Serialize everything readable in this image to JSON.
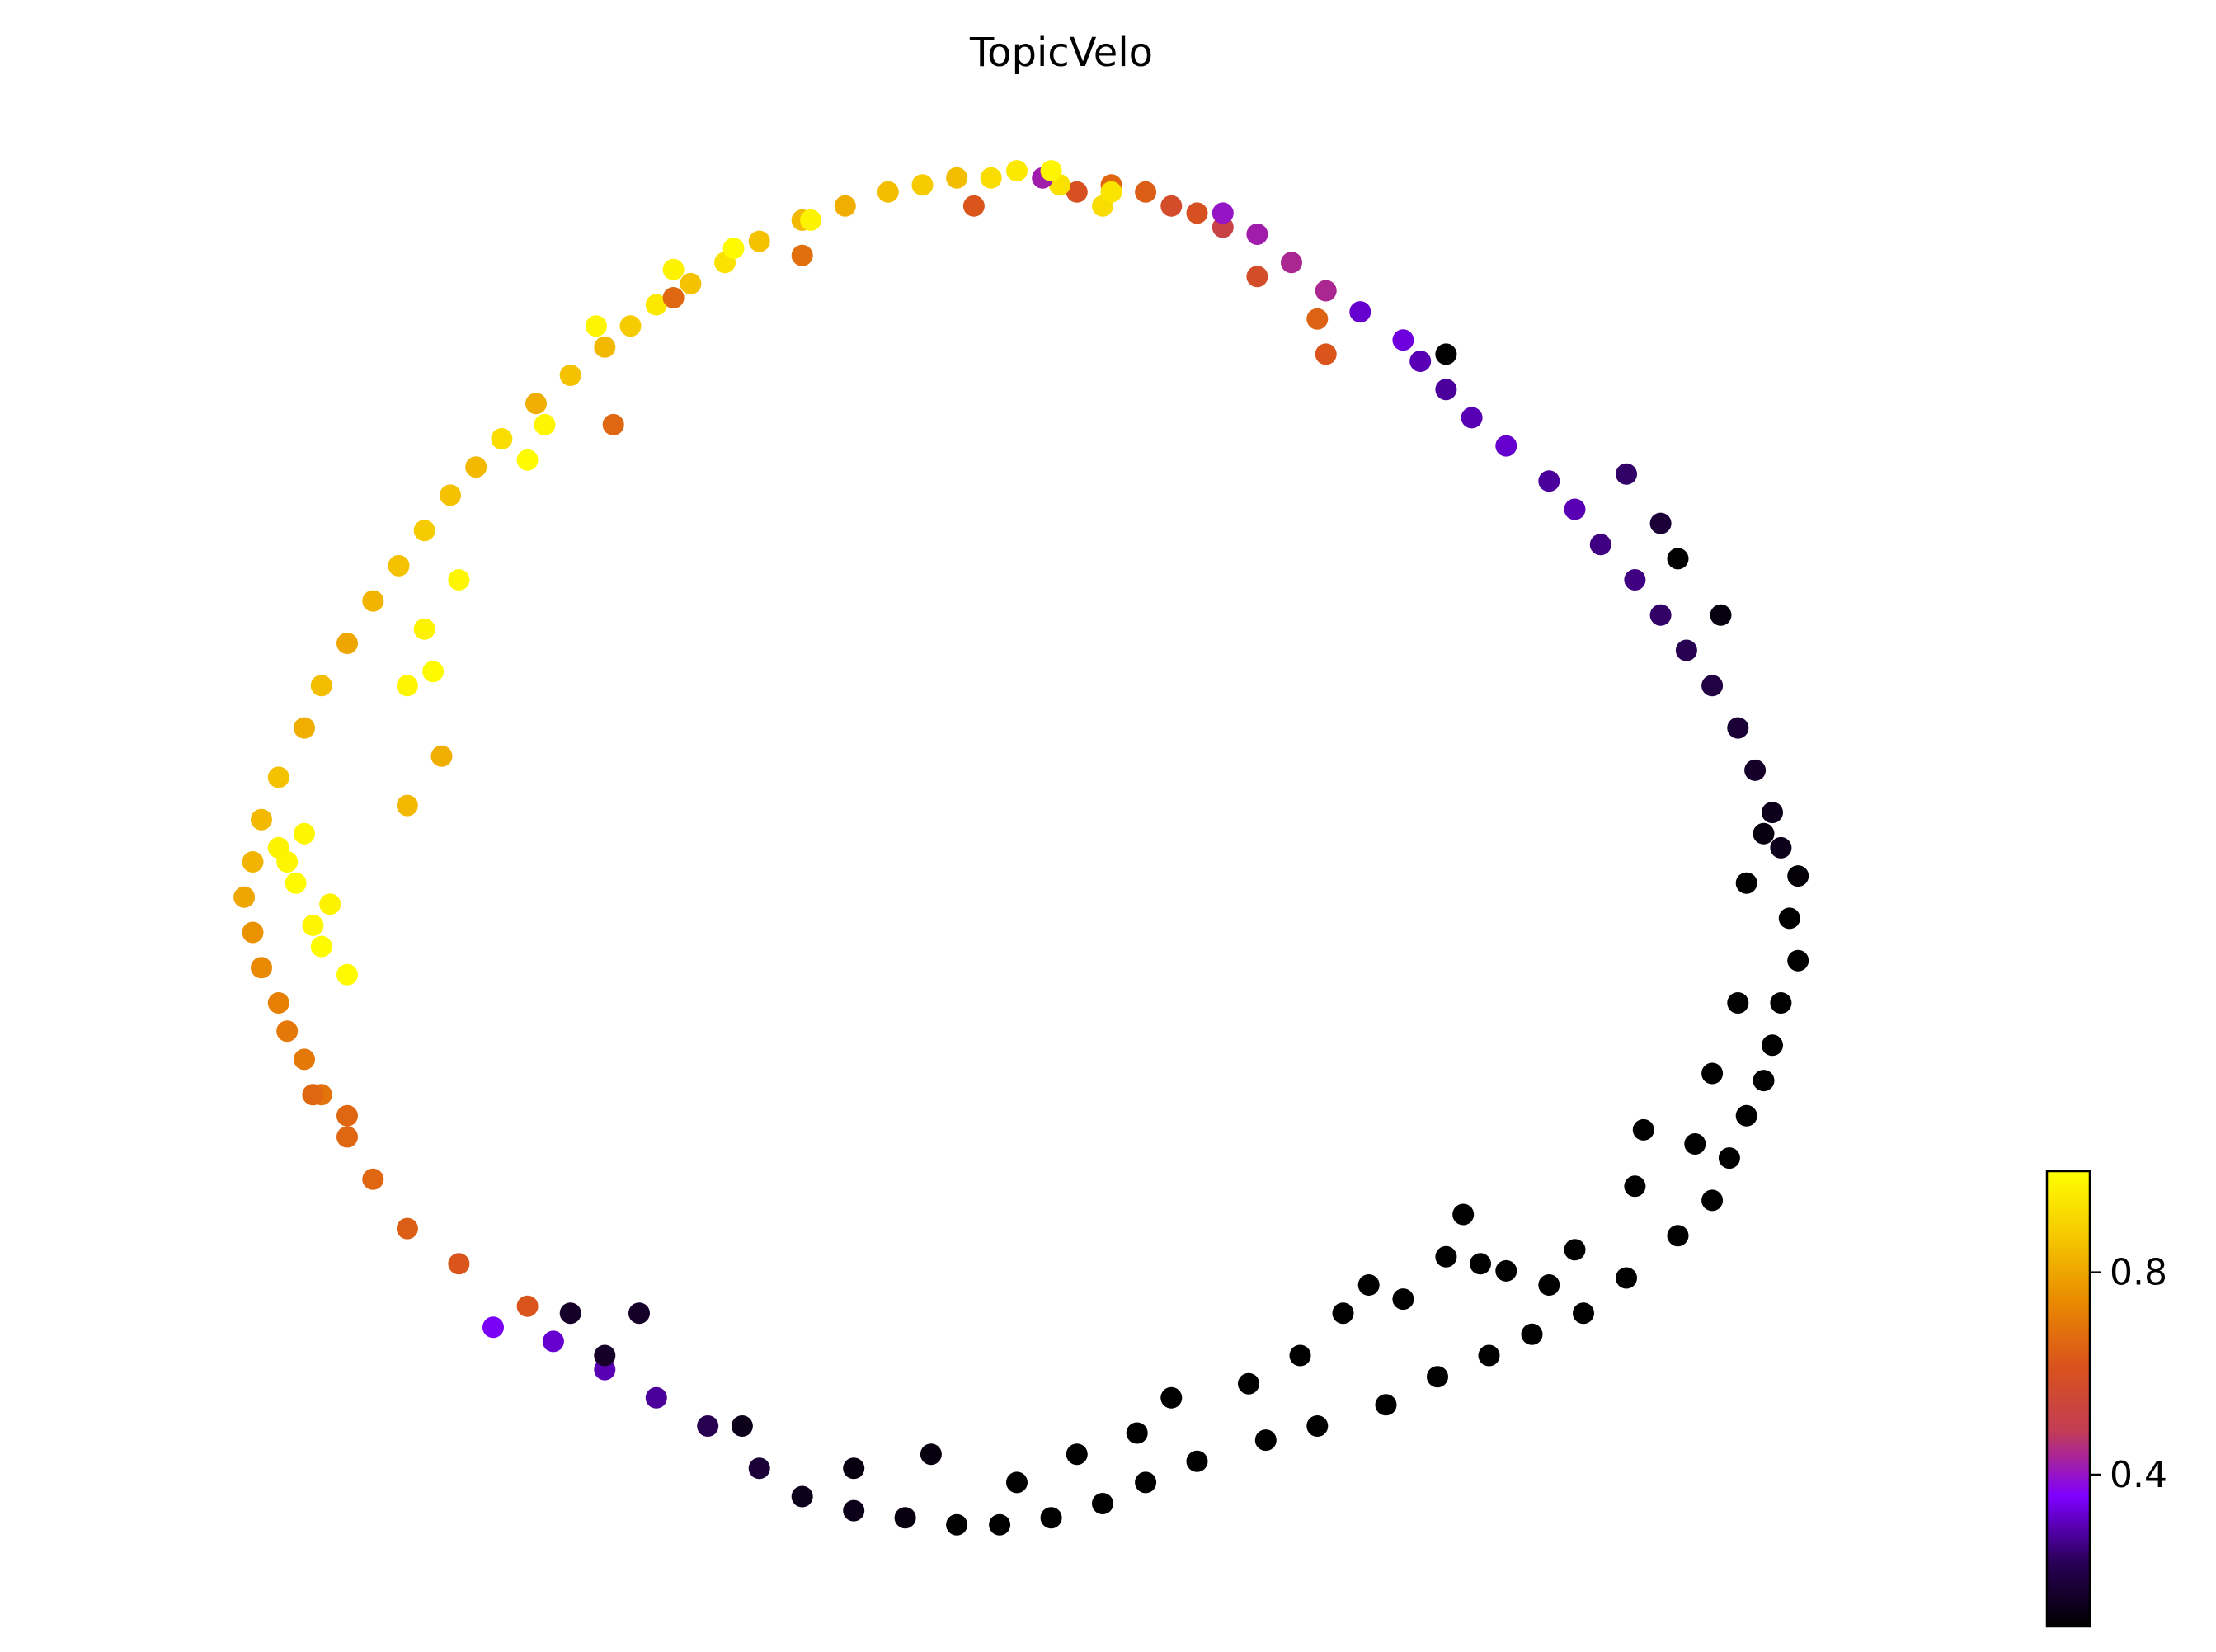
{
  "chart_data": {
    "type": "scatter",
    "title": "TopicVelo",
    "xlabel": "",
    "ylabel": "",
    "grid": false,
    "axes_visible": false,
    "colormap": "gnuplot",
    "colormap_stops": [
      "#000000",
      "#2a0058",
      "#7f00ff",
      "#c23c55",
      "#d9531c",
      "#e98a00",
      "#f5c800",
      "#ffff00"
    ],
    "color_range": [
      0.1,
      1.0
    ],
    "colorbar": {
      "placement": "bottom-right",
      "ticks": [
        {
          "value": 0.4,
          "label": "0.4"
        },
        {
          "value": 0.8,
          "label": "0.8"
        }
      ]
    },
    "point_color": "#000000",
    "x_range": [
      -1.1,
      1.1
    ],
    "y_range": [
      -1.0,
      1.0
    ],
    "points": [
      [
        -0.05,
        0.98,
        0.95
      ],
      [
        -0.08,
        0.97,
        0.92
      ],
      [
        -0.12,
        0.97,
        0.85
      ],
      [
        -0.16,
        0.96,
        0.88
      ],
      [
        -0.2,
        0.95,
        0.85
      ],
      [
        -0.25,
        0.93,
        0.82
      ],
      [
        -0.3,
        0.91,
        0.84
      ],
      [
        -0.35,
        0.88,
        0.86
      ],
      [
        -0.39,
        0.85,
        0.93
      ],
      [
        -0.43,
        0.82,
        0.86
      ],
      [
        -0.47,
        0.79,
        0.95
      ],
      [
        -0.5,
        0.76,
        0.88
      ],
      [
        -0.53,
        0.73,
        0.84
      ],
      [
        -0.57,
        0.69,
        0.86
      ],
      [
        -0.61,
        0.65,
        0.82
      ],
      [
        -0.65,
        0.6,
        0.92
      ],
      [
        -0.68,
        0.56,
        0.84
      ],
      [
        -0.71,
        0.52,
        0.86
      ],
      [
        -0.74,
        0.47,
        0.88
      ],
      [
        -0.77,
        0.42,
        0.86
      ],
      [
        -0.8,
        0.37,
        0.83
      ],
      [
        -0.83,
        0.31,
        0.8
      ],
      [
        -0.86,
        0.25,
        0.85
      ],
      [
        -0.88,
        0.19,
        0.82
      ],
      [
        -0.91,
        0.12,
        0.86
      ],
      [
        -0.93,
        0.06,
        0.84
      ],
      [
        -0.94,
        0.0,
        0.83
      ],
      [
        -0.95,
        -0.05,
        0.8
      ],
      [
        -0.94,
        -0.1,
        0.76
      ],
      [
        -0.93,
        -0.15,
        0.74
      ],
      [
        -0.91,
        -0.2,
        0.72
      ],
      [
        -0.9,
        -0.24,
        0.7
      ],
      [
        -0.88,
        -0.28,
        0.7
      ],
      [
        -0.86,
        -0.33,
        0.69
      ],
      [
        -0.83,
        -0.39,
        0.66
      ],
      [
        -0.8,
        -0.45,
        0.66
      ],
      [
        -0.76,
        -0.52,
        0.64
      ],
      [
        -0.7,
        -0.57,
        0.62
      ],
      [
        -0.62,
        -0.63,
        0.62
      ],
      [
        -0.3,
        0.86,
        0.68
      ],
      [
        -0.52,
        0.62,
        0.66
      ],
      [
        -0.45,
        0.8,
        0.66
      ],
      [
        -0.1,
        0.93,
        0.62
      ],
      [
        0.02,
        0.95,
        0.6
      ],
      [
        0.06,
        0.96,
        0.66
      ],
      [
        0.1,
        0.95,
        0.64
      ],
      [
        0.13,
        0.93,
        0.58
      ],
      [
        0.16,
        0.92,
        0.6
      ],
      [
        0.19,
        0.9,
        0.52
      ],
      [
        0.23,
        0.83,
        0.58
      ],
      [
        0.05,
        0.93,
        0.92
      ],
      [
        -0.0,
        0.96,
        0.93
      ],
      [
        -0.02,
        0.97,
        0.42
      ],
      [
        0.3,
        0.77,
        0.65
      ],
      [
        0.31,
        0.72,
        0.62
      ],
      [
        -0.72,
        0.15,
        0.82
      ],
      [
        -0.76,
        0.08,
        0.84
      ],
      [
        -0.87,
        -0.33,
        0.66
      ],
      [
        -0.83,
        -0.36,
        0.66
      ],
      [
        -0.9,
        0.0,
        0.98
      ],
      [
        -0.89,
        -0.03,
        0.99
      ],
      [
        -0.91,
        0.02,
        0.97
      ],
      [
        -0.88,
        0.04,
        0.98
      ],
      [
        -0.87,
        -0.09,
        0.98
      ],
      [
        -0.86,
        -0.12,
        0.99
      ],
      [
        -0.85,
        -0.06,
        0.97
      ],
      [
        -0.83,
        -0.16,
        0.99
      ],
      [
        -0.76,
        0.25,
        0.98
      ],
      [
        -0.73,
        0.27,
        0.99
      ],
      [
        -0.74,
        0.33,
        0.97
      ],
      [
        -0.7,
        0.4,
        0.98
      ],
      [
        -0.62,
        0.57,
        0.99
      ],
      [
        -0.6,
        0.62,
        0.98
      ],
      [
        -0.54,
        0.76,
        0.98
      ],
      [
        -0.45,
        0.84,
        0.97
      ],
      [
        -0.38,
        0.87,
        0.99
      ],
      [
        -0.29,
        0.91,
        0.97
      ],
      [
        -0.01,
        0.98,
        0.98
      ],
      [
        0.06,
        0.95,
        0.94
      ],
      [
        0.19,
        0.92,
        0.4
      ],
      [
        0.23,
        0.89,
        0.42
      ],
      [
        0.27,
        0.85,
        0.44
      ],
      [
        0.31,
        0.81,
        0.44
      ],
      [
        0.35,
        0.78,
        0.32
      ],
      [
        0.4,
        0.74,
        0.33
      ],
      [
        0.42,
        0.71,
        0.3
      ],
      [
        0.45,
        0.67,
        0.28
      ],
      [
        0.48,
        0.63,
        0.3
      ],
      [
        0.52,
        0.59,
        0.32
      ],
      [
        0.57,
        0.54,
        0.28
      ],
      [
        0.6,
        0.5,
        0.3
      ],
      [
        0.63,
        0.45,
        0.26
      ],
      [
        0.67,
        0.4,
        0.26
      ],
      [
        0.7,
        0.35,
        0.24
      ],
      [
        0.73,
        0.3,
        0.22
      ],
      [
        0.76,
        0.25,
        0.2
      ],
      [
        0.79,
        0.19,
        0.18
      ],
      [
        0.81,
        0.13,
        0.16
      ],
      [
        0.83,
        0.07,
        0.14
      ],
      [
        0.84,
        0.02,
        0.14
      ],
      [
        0.45,
        0.72,
        0.1
      ],
      [
        0.77,
        0.35,
        0.12
      ],
      [
        0.72,
        0.43,
        0.1
      ],
      [
        0.7,
        0.48,
        0.18
      ],
      [
        0.66,
        0.55,
        0.24
      ],
      [
        0.86,
        -0.02,
        0.11
      ],
      [
        0.85,
        -0.08,
        0.1
      ],
      [
        0.86,
        -0.14,
        0.1
      ],
      [
        0.84,
        -0.2,
        0.1
      ],
      [
        0.83,
        -0.26,
        0.1
      ],
      [
        0.82,
        -0.31,
        0.1
      ],
      [
        0.8,
        -0.36,
        0.1
      ],
      [
        0.78,
        -0.42,
        0.1
      ],
      [
        0.76,
        -0.48,
        0.1
      ],
      [
        0.72,
        -0.53,
        0.1
      ],
      [
        0.66,
        -0.59,
        0.1
      ],
      [
        0.61,
        -0.64,
        0.1
      ],
      [
        0.55,
        -0.67,
        0.1
      ],
      [
        0.5,
        -0.7,
        0.1
      ],
      [
        0.44,
        -0.73,
        0.1
      ],
      [
        0.38,
        -0.77,
        0.1
      ],
      [
        0.3,
        -0.8,
        0.1
      ],
      [
        0.24,
        -0.82,
        0.1
      ],
      [
        0.16,
        -0.85,
        0.1
      ],
      [
        0.1,
        -0.88,
        0.1
      ],
      [
        0.05,
        -0.91,
        0.1
      ],
      [
        -0.01,
        -0.93,
        0.1
      ],
      [
        -0.07,
        -0.94,
        0.1
      ],
      [
        -0.12,
        -0.94,
        0.1
      ],
      [
        -0.18,
        -0.93,
        0.12
      ],
      [
        -0.24,
        -0.92,
        0.14
      ],
      [
        -0.3,
        -0.9,
        0.14
      ],
      [
        -0.35,
        -0.86,
        0.18
      ],
      [
        -0.41,
        -0.8,
        0.22
      ],
      [
        -0.47,
        -0.76,
        0.28
      ],
      [
        -0.53,
        -0.72,
        0.3
      ],
      [
        -0.59,
        -0.68,
        0.32
      ],
      [
        -0.66,
        -0.66,
        0.35
      ],
      [
        0.82,
        0.04,
        0.12
      ],
      [
        0.8,
        -0.03,
        0.1
      ],
      [
        0.79,
        -0.2,
        0.1
      ],
      [
        0.76,
        -0.3,
        0.1
      ],
      [
        0.74,
        -0.4,
        0.1
      ],
      [
        0.67,
        -0.46,
        0.1
      ],
      [
        0.6,
        -0.55,
        0.1
      ],
      [
        0.57,
        -0.6,
        0.1
      ],
      [
        0.52,
        -0.58,
        0.1
      ],
      [
        0.4,
        -0.62,
        0.1
      ],
      [
        0.33,
        -0.64,
        0.1
      ],
      [
        0.28,
        -0.7,
        0.1
      ],
      [
        0.22,
        -0.74,
        0.1
      ],
      [
        0.13,
        -0.76,
        0.1
      ],
      [
        0.09,
        -0.81,
        0.1
      ],
      [
        0.02,
        -0.84,
        0.1
      ],
      [
        -0.05,
        -0.88,
        0.1
      ],
      [
        -0.15,
        -0.84,
        0.12
      ],
      [
        -0.24,
        -0.86,
        0.12
      ],
      [
        -0.37,
        -0.8,
        0.14
      ],
      [
        -0.49,
        -0.64,
        0.16
      ],
      [
        -0.53,
        -0.7,
        0.16
      ],
      [
        -0.57,
        -0.64,
        0.16
      ],
      [
        0.68,
        -0.38,
        0.1
      ],
      [
        0.47,
        -0.5,
        0.1
      ],
      [
        0.49,
        -0.57,
        0.1
      ],
      [
        0.36,
        -0.6,
        0.1
      ],
      [
        0.45,
        -0.56,
        0.1
      ]
    ]
  }
}
